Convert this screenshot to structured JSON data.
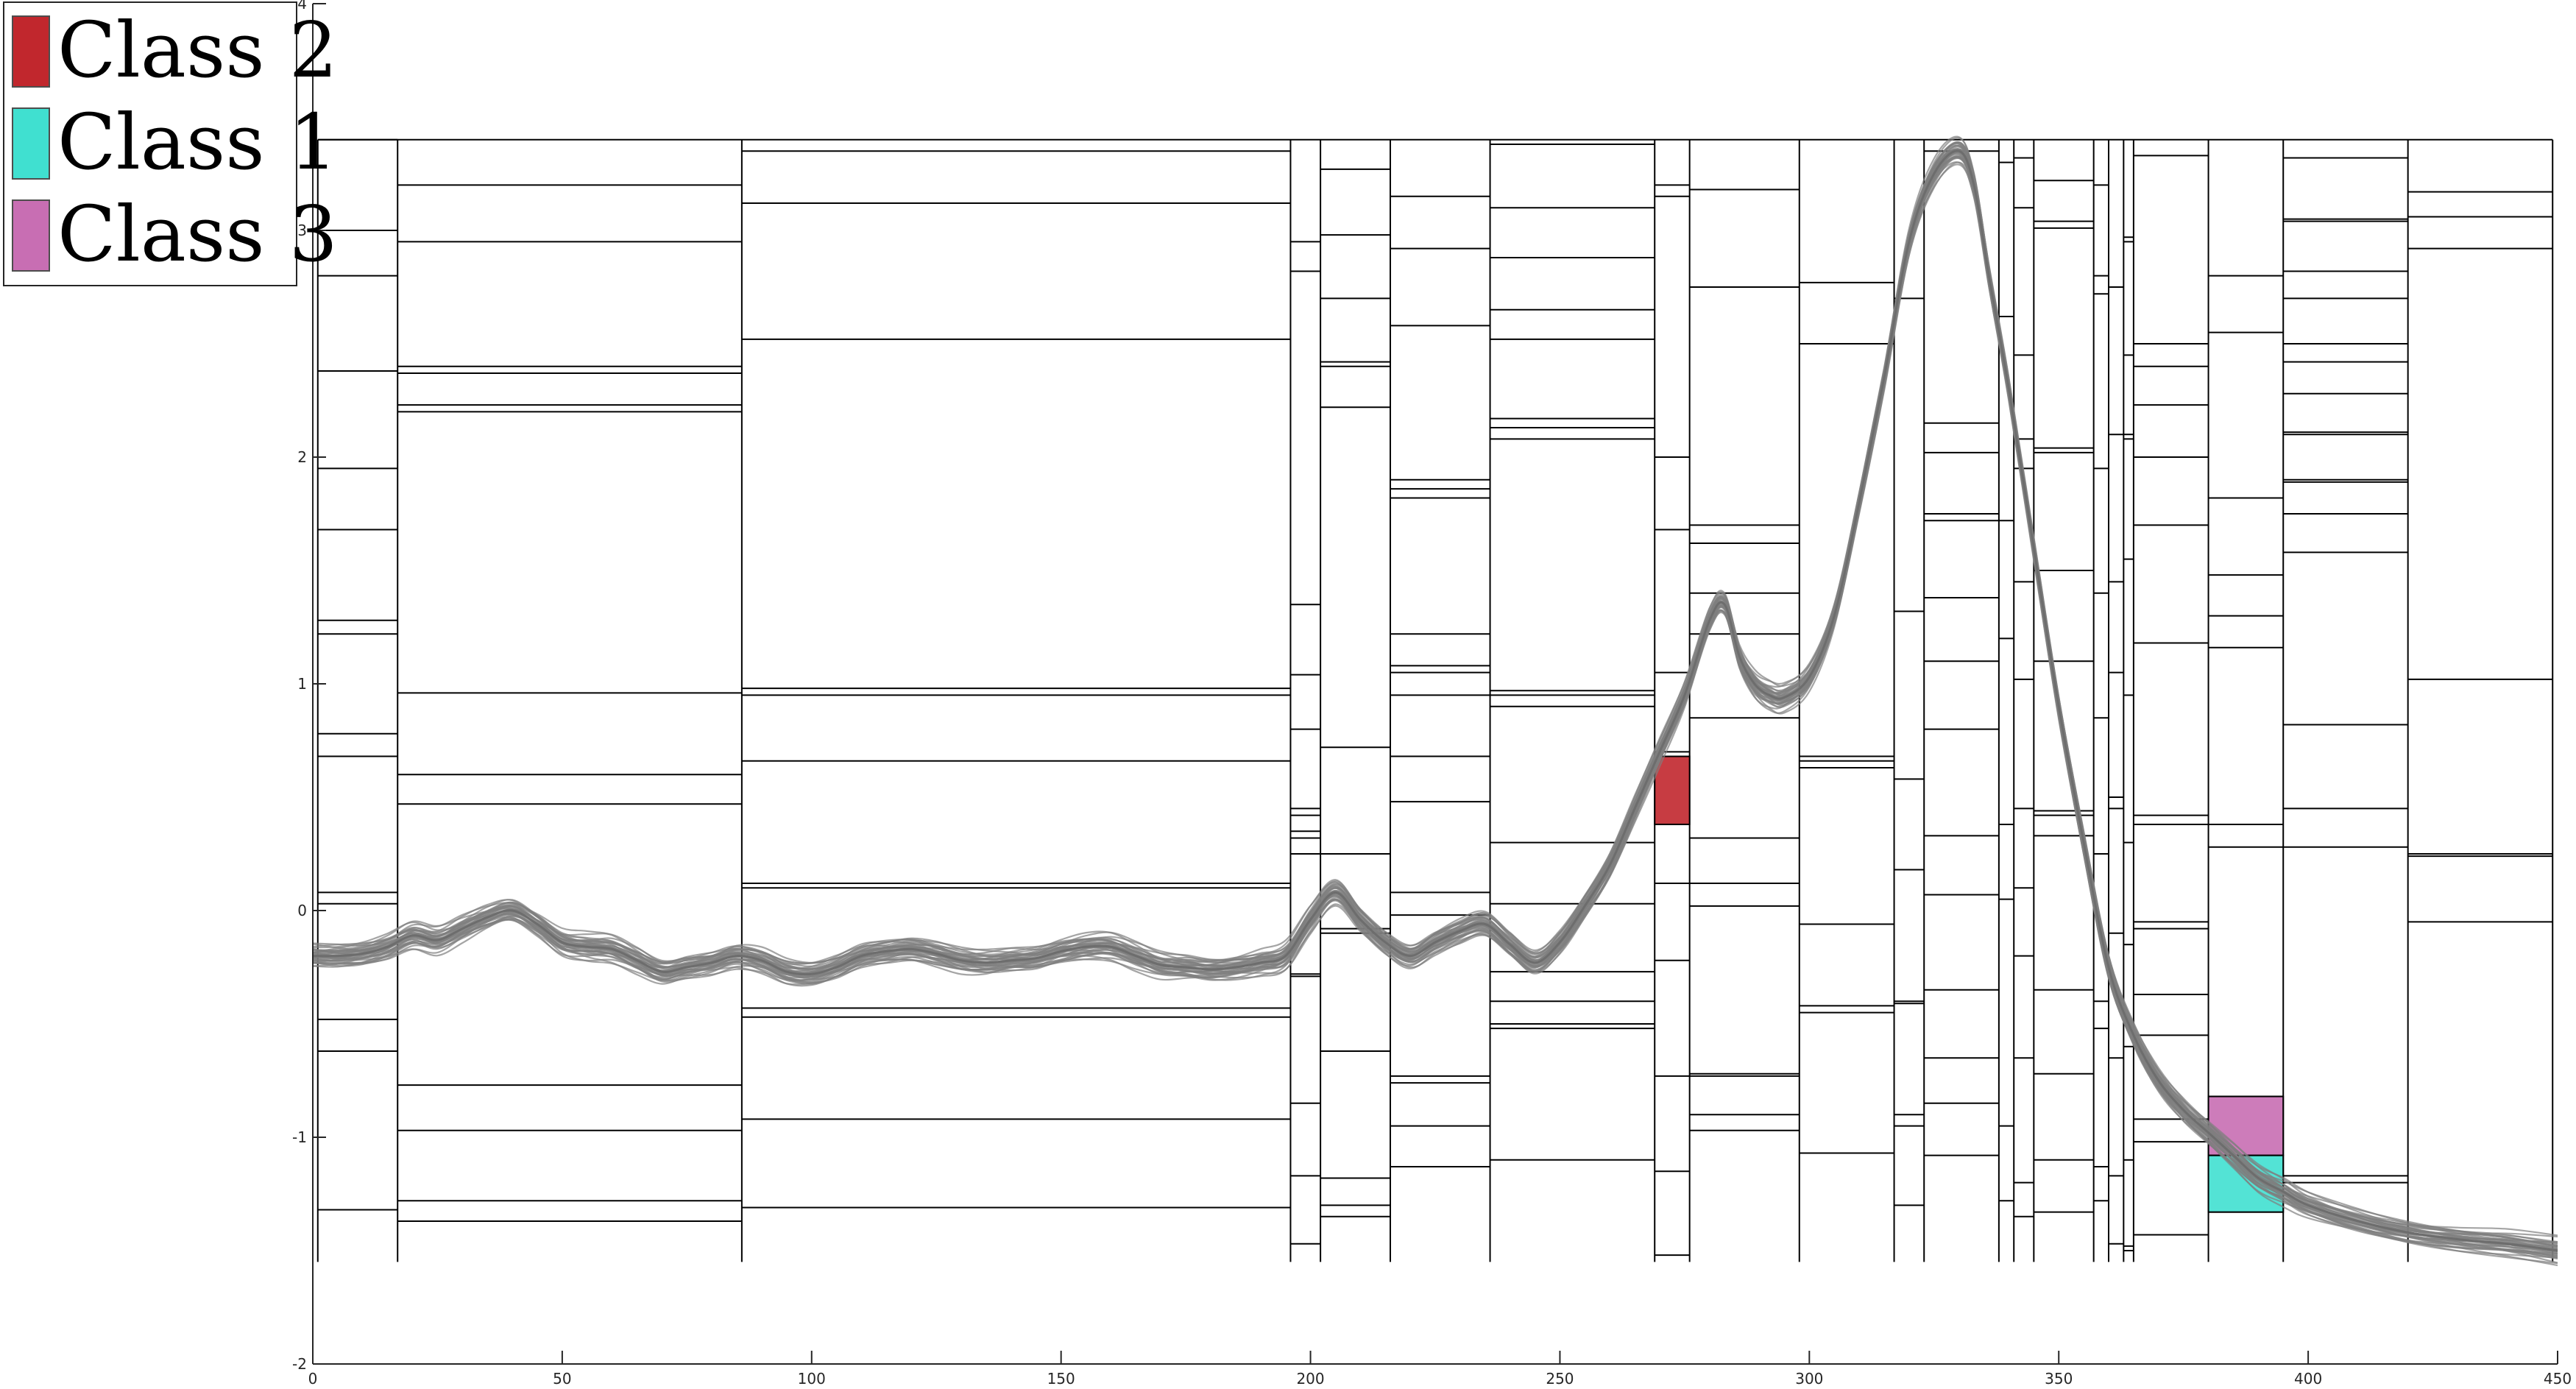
{
  "chart_data": {
    "type": "line",
    "title": "",
    "xlabel": "",
    "ylabel": "",
    "xlim": [
      0,
      450
    ],
    "ylim": [
      -2,
      4
    ],
    "xticks": [
      0,
      50,
      100,
      150,
      200,
      250,
      300,
      350,
      400,
      450
    ],
    "yticks": [
      -2,
      -1,
      0,
      1,
      2,
      3,
      4
    ],
    "grid": false,
    "legend_placement": "top-left",
    "series_color": "#7f7f7f",
    "frame_color": "#000000",
    "legend": [
      {
        "label": "Class 2",
        "color": "#c1272d"
      },
      {
        "label": "Class 1",
        "color": "#40e0d0"
      },
      {
        "label": "Class 3",
        "color": "#c86eb3"
      }
    ],
    "trace": {
      "x": [
        0,
        5,
        10,
        15,
        20,
        25,
        30,
        35,
        40,
        45,
        50,
        55,
        60,
        65,
        70,
        75,
        80,
        85,
        90,
        95,
        100,
        105,
        110,
        115,
        120,
        125,
        130,
        135,
        140,
        145,
        150,
        155,
        160,
        165,
        170,
        175,
        180,
        185,
        190,
        195,
        200,
        205,
        210,
        215,
        220,
        225,
        230,
        235,
        240,
        245,
        250,
        255,
        260,
        265,
        270,
        275,
        280,
        283,
        286,
        289,
        292,
        295,
        300,
        305,
        310,
        315,
        320,
        325,
        330,
        333,
        336,
        340,
        345,
        350,
        355,
        360,
        365,
        370,
        375,
        380,
        385,
        390,
        395,
        400,
        410,
        420,
        430,
        440,
        450
      ],
      "y": [
        -0.2,
        -0.2,
        -0.19,
        -0.16,
        -0.11,
        -0.13,
        -0.08,
        -0.03,
        0.0,
        -0.06,
        -0.14,
        -0.16,
        -0.17,
        -0.22,
        -0.27,
        -0.25,
        -0.23,
        -0.2,
        -0.22,
        -0.27,
        -0.28,
        -0.25,
        -0.2,
        -0.18,
        -0.17,
        -0.19,
        -0.22,
        -0.23,
        -0.22,
        -0.21,
        -0.18,
        -0.16,
        -0.16,
        -0.2,
        -0.24,
        -0.25,
        -0.26,
        -0.25,
        -0.23,
        -0.2,
        -0.04,
        0.08,
        -0.04,
        -0.14,
        -0.2,
        -0.14,
        -0.09,
        -0.06,
        -0.15,
        -0.23,
        -0.14,
        0.02,
        0.2,
        0.45,
        0.7,
        0.95,
        1.28,
        1.35,
        1.12,
        1.0,
        0.95,
        0.94,
        1.03,
        1.3,
        1.8,
        2.35,
        2.95,
        3.25,
        3.35,
        3.2,
        2.8,
        2.3,
        1.6,
        0.9,
        0.3,
        -0.25,
        -0.55,
        -0.75,
        -0.88,
        -0.98,
        -1.08,
        -1.18,
        -1.24,
        -1.3,
        -1.37,
        -1.42,
        -1.45,
        -1.47,
        -1.5
      ]
    },
    "partitions": [
      {
        "x0": 1,
        "x1": 17,
        "cuts": [
          3.4,
          3.0,
          2.8,
          2.38,
          1.95,
          1.68,
          1.28,
          1.22,
          0.78,
          0.68,
          0.08,
          0.03,
          -0.48,
          -0.62,
          -1.32
        ]
      },
      {
        "x0": 17,
        "x1": 86,
        "cuts": [
          3.2,
          2.95,
          2.4,
          2.37,
          2.23,
          2.2,
          0.96,
          0.6,
          0.47,
          -0.77,
          -0.97,
          -1.28,
          -1.37
        ]
      },
      {
        "x0": 86,
        "x1": 196,
        "cuts": [
          3.35,
          3.12,
          2.52,
          0.98,
          0.95,
          0.66,
          0.12,
          0.1,
          -0.43,
          -0.47,
          -0.92,
          -1.31
        ]
      },
      {
        "x0": 196,
        "x1": 202,
        "cuts": [
          2.95,
          2.82,
          1.35,
          1.04,
          0.8,
          0.45,
          0.42,
          0.35,
          0.32,
          0.25,
          -0.28,
          -0.29,
          -0.85,
          -1.17,
          -1.47
        ]
      },
      {
        "x0": 202,
        "x1": 216,
        "cuts": [
          3.27,
          2.98,
          2.7,
          2.42,
          2.4,
          2.22,
          0.72,
          0.25,
          -0.08,
          -0.1,
          -0.62,
          -1.18,
          -1.3,
          -1.35
        ]
      },
      {
        "x0": 216,
        "x1": 236,
        "cuts": [
          3.15,
          2.92,
          2.58,
          1.9,
          1.86,
          1.82,
          1.22,
          1.08,
          1.05,
          0.95,
          0.68,
          0.48,
          0.08,
          -0.02,
          -0.73,
          -0.76,
          -0.95,
          -1.13
        ]
      },
      {
        "x0": 236,
        "x1": 269,
        "cuts": [
          3.38,
          3.1,
          2.88,
          2.65,
          2.52,
          2.17,
          2.13,
          2.08,
          0.97,
          0.95,
          0.9,
          0.3,
          0.03,
          -0.27,
          -0.4,
          -0.5,
          -0.52,
          -1.1
        ]
      },
      {
        "x0": 269,
        "x1": 276,
        "cuts": [
          3.2,
          3.15,
          2.0,
          1.68,
          1.05,
          0.7,
          0.38,
          0.12,
          -0.22,
          -0.73,
          -1.15,
          -1.52
        ]
      },
      {
        "x0": 276,
        "x1": 298,
        "cuts": [
          3.18,
          2.75,
          1.7,
          1.62,
          1.4,
          1.22,
          0.85,
          0.32,
          0.12,
          0.02,
          -0.72,
          -0.73,
          -0.9,
          -0.97
        ]
      },
      {
        "x0": 298,
        "x1": 317,
        "cuts": [
          2.77,
          2.5,
          0.68,
          0.66,
          0.63,
          -0.06,
          -0.42,
          -0.45,
          -1.07
        ]
      },
      {
        "x0": 317,
        "x1": 323,
        "cuts": [
          2.7,
          1.32,
          0.58,
          0.18,
          -0.4,
          -0.41,
          -0.9,
          -0.95,
          -1.3
        ]
      },
      {
        "x0": 323,
        "x1": 338,
        "cuts": [
          3.35,
          2.15,
          2.02,
          1.75,
          1.72,
          1.38,
          1.1,
          0.8,
          0.33,
          0.07,
          -0.35,
          -0.65,
          -0.85,
          -1.08
        ]
      },
      {
        "x0": 338,
        "x1": 341,
        "cuts": [
          3.3,
          2.62,
          1.72,
          1.2,
          0.38,
          0.05,
          -0.95,
          -1.28
        ]
      },
      {
        "x0": 341,
        "x1": 345,
        "cuts": [
          3.32,
          3.1,
          2.45,
          2.08,
          1.95,
          1.45,
          1.02,
          0.45,
          0.1,
          -0.2,
          -0.65,
          -1.2,
          -1.35
        ]
      },
      {
        "x0": 345,
        "x1": 357,
        "cuts": [
          3.22,
          3.04,
          3.01,
          2.04,
          2.02,
          1.5,
          1.1,
          0.44,
          0.42,
          0.33,
          -0.35,
          -0.72,
          -1.1,
          -1.33
        ]
      },
      {
        "x0": 357,
        "x1": 360,
        "cuts": [
          3.2,
          2.8,
          2.72,
          1.95,
          1.4,
          0.85,
          0.25,
          -0.4,
          -0.52,
          -1.13,
          -1.28
        ]
      },
      {
        "x0": 360,
        "x1": 363,
        "cuts": [
          2.75,
          2.1,
          1.45,
          1.05,
          0.5,
          0.45,
          -0.1,
          -0.65,
          -1.17,
          -1.47
        ]
      },
      {
        "x0": 363,
        "x1": 365,
        "cuts": [
          2.97,
          2.95,
          2.45,
          2.1,
          2.08,
          1.55,
          0.95,
          0.3,
          -0.15,
          -0.6,
          -1.1,
          -1.48,
          -1.5
        ]
      },
      {
        "x0": 365,
        "x1": 380,
        "cuts": [
          3.33,
          2.5,
          2.4,
          2.23,
          2.0,
          1.7,
          1.18,
          0.42,
          0.38,
          -0.05,
          -0.08,
          -0.37,
          -0.55,
          -0.92,
          -1.02,
          -1.43
        ]
      },
      {
        "x0": 380,
        "x1": 395,
        "cuts": [
          2.8,
          2.55,
          1.82,
          1.48,
          1.3,
          1.16,
          0.38,
          0.28,
          -0.82,
          -1.08,
          -1.33
        ]
      },
      {
        "x0": 395,
        "x1": 420,
        "cuts": [
          3.32,
          3.05,
          3.04,
          2.82,
          2.7,
          2.5,
          2.42,
          2.28,
          2.11,
          2.1,
          1.9,
          1.89,
          1.75,
          1.58,
          0.82,
          0.45,
          0.28,
          -1.17,
          -1.2
        ]
      },
      {
        "x0": 420,
        "x1": 449,
        "cuts": [
          3.17,
          3.06,
          2.92,
          1.02,
          0.25,
          0.24,
          -0.05
        ]
      }
    ],
    "partition_y_range": [
      -1.55,
      3.4
    ],
    "class_regions": [
      {
        "label": "Class 2",
        "x0": 269,
        "x1": 276,
        "y0": 0.38,
        "y1": 0.68
      },
      {
        "label": "Class 3",
        "x0": 380,
        "x1": 395,
        "y0": -1.08,
        "y1": -0.82
      },
      {
        "label": "Class 1",
        "x0": 380,
        "x1": 395,
        "y0": -1.33,
        "y1": -1.08
      }
    ]
  }
}
